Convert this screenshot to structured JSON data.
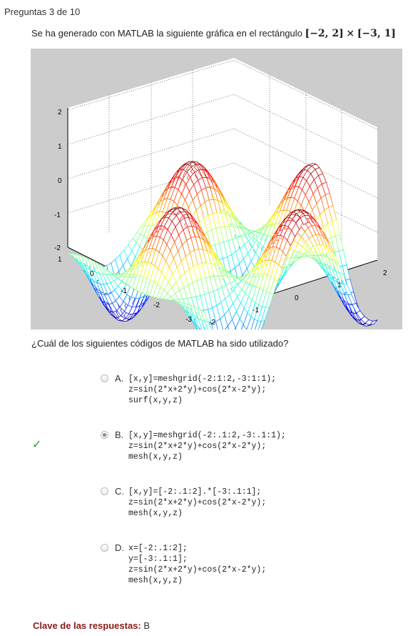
{
  "question_number": "Preguntas 3 de 10",
  "question": {
    "text": "Se ha generado con MATLAB la siguiente gráfica en el rectángulo",
    "interval_x": "[−2, 2]",
    "times": "×",
    "interval_y": "[−3, 1]"
  },
  "figure": {
    "z_ticks": [
      "2",
      "1",
      "0",
      "-1",
      "-2"
    ],
    "y_ticks": [
      "1",
      "0",
      "-1",
      "-2",
      "-3"
    ],
    "x_ticks": [
      "-2",
      "-1",
      "0",
      "1",
      "2"
    ],
    "background_color": "#cccccc"
  },
  "prompt": "¿Cuál de los siguientes códigos de MATLAB ha sido utilizado?",
  "options": [
    {
      "letter": "A.",
      "code": "[x,y]=meshgrid(-2:1:2,-3:1:1);\nz=sin(2*x+2*y)+cos(2*x-2*y);\nsurf(x,y,z)",
      "selected": false
    },
    {
      "letter": "B.",
      "code": "[x,y]=meshgrid(-2:.1:2,-3:.1:1);\nz=sin(2*x+2*y)+cos(2*x-2*y);\nmesh(x,y,z)",
      "selected": true
    },
    {
      "letter": "C.",
      "code": "[x,y]=[-2:.1:2].*[-3:.1:1];\nz=sin(2*x+2*y)+cos(2*x-2*y);\nmesh(x,y,z)",
      "selected": false
    },
    {
      "letter": "D.",
      "code": "x=[-2:.1:2];\ny=[-3:.1:1];\nz=sin(2*x+2*y)+cos(2*x-2*y);\nmesh(x,y,z)",
      "selected": false
    }
  ],
  "correct_mark": "✓",
  "answer_key": {
    "label": "Clave de las respuestas:",
    "value": "B"
  }
}
